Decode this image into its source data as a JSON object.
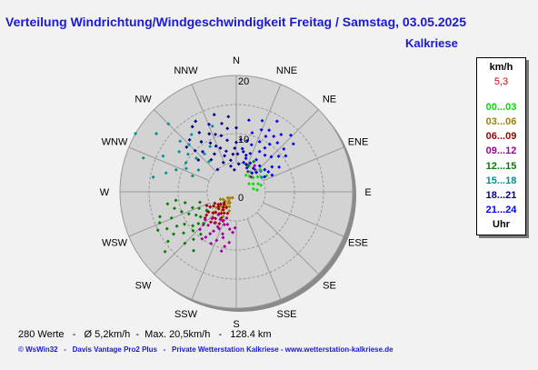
{
  "header": {
    "title": "Verteilung Windrichtung/Windgeschwindigkeit Freitag / Samstag, 03.05.2025",
    "station": "Kalkriese"
  },
  "legend": {
    "unit": "km/h",
    "current_value": "5,3",
    "current_color": "#d40000",
    "time_label": "Uhr",
    "periods": [
      {
        "label": "00...03",
        "color": "#00e000"
      },
      {
        "label": "03...06",
        "color": "#a08000"
      },
      {
        "label": "06...09",
        "color": "#a00000"
      },
      {
        "label": "09...12",
        "color": "#a000a0"
      },
      {
        "label": "12...15",
        "color": "#008000"
      },
      {
        "label": "15...18",
        "color": "#009090"
      },
      {
        "label": "18...21",
        "color": "#000090"
      },
      {
        "label": "21...24",
        "color": "#0000ff"
      }
    ]
  },
  "footer": {
    "stats": "280 Werte   -   Ø 5,2km/h  -  Max. 20,5km/h   -   128.4 km",
    "credits": "© WsWin32   -   Davis Vantage Pro2 Plus   -   Private Wetterstation Kalkriese - www.wetterstation-kalkriese.de"
  },
  "chart_data": {
    "type": "scatter",
    "projection": "polar",
    "angle_unit": "degrees (0 = N, clockwise)",
    "radius_unit": "km/h",
    "rlim": [
      0,
      20
    ],
    "ring_labels": [
      "0",
      "10",
      "20"
    ],
    "directions": [
      "N",
      "NNE",
      "NE",
      "ENE",
      "E",
      "ESE",
      "SE",
      "SSE",
      "S",
      "SSW",
      "SW",
      "WSW",
      "W",
      "WNW",
      "NW",
      "NNW"
    ],
    "grid": true,
    "series": [
      {
        "name": "00...03",
        "color": "#00e000",
        "points": [
          [
            40,
            3.5
          ],
          [
            55,
            4.5
          ],
          [
            70,
            4.0
          ],
          [
            35,
            4.2
          ],
          [
            80,
            3.0
          ],
          [
            60,
            5.0
          ],
          [
            50,
            3.8
          ],
          [
            65,
            3.2
          ],
          [
            45,
            4.8
          ],
          [
            75,
            4.4
          ],
          [
            30,
            3.3
          ],
          [
            58,
            2.6
          ],
          [
            85,
            3.6
          ],
          [
            48,
            5.6
          ],
          [
            62,
            5.9
          ],
          [
            25,
            4.7
          ]
        ]
      },
      {
        "name": "03...06",
        "color": "#a08000",
        "points": [
          [
            220,
            2.0
          ],
          [
            225,
            1.5
          ],
          [
            230,
            2.5
          ],
          [
            215,
            3.0
          ],
          [
            210,
            2.2
          ],
          [
            235,
            1.8
          ],
          [
            205,
            2.8
          ],
          [
            228,
            3.6
          ],
          [
            218,
            4.0
          ],
          [
            240,
            2.6
          ],
          [
            212,
            1.2
          ],
          [
            222,
            3.3
          ],
          [
            200,
            3.5
          ],
          [
            232,
            4.4
          ],
          [
            245,
            3.0
          ],
          [
            208,
            4.8
          ],
          [
            226,
            5.0
          ],
          [
            216,
            2.4
          ]
        ]
      },
      {
        "name": "06...09",
        "color": "#a00000",
        "points": [
          [
            220,
            3.5
          ],
          [
            230,
            4.0
          ],
          [
            225,
            5.0
          ],
          [
            215,
            4.5
          ],
          [
            235,
            3.8
          ],
          [
            210,
            4.2
          ],
          [
            240,
            5.2
          ],
          [
            205,
            5.5
          ],
          [
            222,
            6.0
          ],
          [
            232,
            6.5
          ],
          [
            212,
            3.2
          ],
          [
            228,
            2.8
          ],
          [
            218,
            5.8
          ],
          [
            238,
            4.6
          ],
          [
            226,
            4.2
          ],
          [
            245,
            5.6
          ],
          [
            202,
            4.0
          ],
          [
            234,
            5.9
          ],
          [
            214,
            6.4
          ],
          [
            224,
            3.0
          ],
          [
            230,
            7.0
          ],
          [
            208,
            6.2
          ],
          [
            220,
            6.8
          ],
          [
            236,
            6.0
          ],
          [
            216,
            3.8
          ],
          [
            242,
            4.2
          ],
          [
            228,
            5.4
          ],
          [
            210,
            5.2
          ],
          [
            218,
            4.8
          ],
          [
            232,
            3.4
          ]
        ]
      },
      {
        "name": "09...12",
        "color": "#a000a0",
        "points": [
          [
            210,
            5.5
          ],
          [
            215,
            6.5
          ],
          [
            220,
            7.5
          ],
          [
            200,
            6.0
          ],
          [
            205,
            7.0
          ],
          [
            195,
            5.8
          ],
          [
            225,
            8.0
          ],
          [
            190,
            6.5
          ],
          [
            212,
            8.5
          ],
          [
            202,
            9.0
          ],
          [
            198,
            7.6
          ],
          [
            218,
            5.0
          ],
          [
            185,
            7.0
          ],
          [
            208,
            6.8
          ],
          [
            222,
            6.2
          ],
          [
            196,
            8.2
          ],
          [
            214,
            9.4
          ],
          [
            204,
            5.4
          ],
          [
            188,
            8.8
          ],
          [
            228,
            7.2
          ],
          [
            192,
            9.6
          ],
          [
            210,
            7.8
          ],
          [
            200,
            4.8
          ],
          [
            216,
            10.0
          ],
          [
            182,
            6.2
          ],
          [
            206,
            9.9
          ],
          [
            194,
            10.5
          ],
          [
            224,
            9.0
          ],
          [
            30,
            4.0
          ],
          [
            40,
            5.0
          ],
          [
            45,
            3.6
          ],
          [
            35,
            5.5
          ]
        ]
      },
      {
        "name": "12...15",
        "color": "#008000",
        "points": [
          [
            240,
            8.0
          ],
          [
            245,
            9.0
          ],
          [
            235,
            7.5
          ],
          [
            250,
            10.0
          ],
          [
            230,
            8.5
          ],
          [
            255,
            11.0
          ],
          [
            238,
            10.5
          ],
          [
            248,
            12.0
          ],
          [
            232,
            11.5
          ],
          [
            225,
            12.5
          ],
          [
            242,
            13.5
          ],
          [
            258,
            9.0
          ],
          [
            236,
            13.0
          ],
          [
            252,
            13.8
          ],
          [
            228,
            10.0
          ],
          [
            246,
            7.0
          ],
          [
            232,
            9.5
          ],
          [
            260,
            12.0
          ],
          [
            222,
            11.0
          ],
          [
            240,
            11.8
          ],
          [
            250,
            8.0
          ],
          [
            220,
            9.5
          ],
          [
            244,
            15.0
          ],
          [
            262,
            10.5
          ],
          [
            234,
            14.5
          ],
          [
            216,
            12.5
          ],
          [
            248,
            14.2
          ],
          [
            254,
            6.5
          ],
          [
            238,
            6.0
          ],
          [
            226,
            7.8
          ],
          [
            230,
            16.0
          ],
          [
            30,
            6.0
          ],
          [
            25,
            5.0
          ]
        ]
      },
      {
        "name": "15...18",
        "color": "#009090",
        "points": [
          [
            300,
            10.0
          ],
          [
            310,
            9.0
          ],
          [
            290,
            11.0
          ],
          [
            320,
            8.5
          ],
          [
            305,
            12.0
          ],
          [
            295,
            9.5
          ],
          [
            315,
            11.5
          ],
          [
            325,
            10.5
          ],
          [
            285,
            12.5
          ],
          [
            330,
            9.0
          ],
          [
            300,
            7.5
          ],
          [
            312,
            13.0
          ],
          [
            296,
            14.0
          ],
          [
            318,
            7.0
          ],
          [
            335,
            11.0
          ],
          [
            308,
            10.5
          ],
          [
            322,
            12.5
          ],
          [
            290,
            8.0
          ],
          [
            300,
            20.0
          ],
          [
            306,
            17.0
          ],
          [
            315,
            16.5
          ],
          [
            280,
            14.5
          ],
          [
            290,
            17.0
          ],
          [
            340,
            12.0
          ],
          [
            50,
            5.5
          ],
          [
            60,
            5.0
          ]
        ]
      },
      {
        "name": "18...21",
        "color": "#000090",
        "points": [
          [
            340,
            8.0
          ],
          [
            350,
            9.0
          ],
          [
            330,
            7.5
          ],
          [
            345,
            10.0
          ],
          [
            320,
            9.0
          ],
          [
            355,
            6.5
          ],
          [
            335,
            11.0
          ],
          [
            325,
            10.5
          ],
          [
            0,
            8.5
          ],
          [
            348,
            12.0
          ],
          [
            338,
            12.5
          ],
          [
            328,
            12.0
          ],
          [
            310,
            8.5
          ],
          [
            315,
            10.0
          ],
          [
            342,
            6.5
          ],
          [
            352,
            11.0
          ],
          [
            5,
            9.0
          ],
          [
            318,
            12.0
          ],
          [
            332,
            9.5
          ],
          [
            346,
            7.2
          ],
          [
            322,
            7.0
          ],
          [
            336,
            8.6
          ],
          [
            2,
            6.5
          ],
          [
            354,
            13.0
          ],
          [
            326,
            13.5
          ],
          [
            312,
            11.5
          ],
          [
            344,
            13.8
          ],
          [
            340,
            10.5
          ],
          [
            10,
            7.0
          ],
          [
            358,
            7.5
          ],
          [
            330,
            14.0
          ],
          [
            0,
            11.0
          ],
          [
            350,
            5.5
          ],
          [
            15,
            6.5
          ],
          [
            320,
            5.0
          ],
          [
            336,
            5.5
          ],
          [
            348,
            4.5
          ],
          [
            5,
            4.8
          ],
          [
            20,
            5.0
          ],
          [
            355,
            3.8
          ]
        ]
      },
      {
        "name": "21...24",
        "color": "#0000ff",
        "points": [
          [
            20,
            7.0
          ],
          [
            30,
            8.0
          ],
          [
            25,
            9.5
          ],
          [
            35,
            10.0
          ],
          [
            15,
            10.5
          ],
          [
            40,
            11.0
          ],
          [
            28,
            12.0
          ],
          [
            45,
            8.5
          ],
          [
            10,
            12.5
          ],
          [
            50,
            9.5
          ],
          [
            38,
            12.5
          ],
          [
            18,
            8.5
          ],
          [
            32,
            6.5
          ],
          [
            42,
            6.0
          ],
          [
            55,
            7.5
          ],
          [
            22,
            11.5
          ],
          [
            48,
            11.0
          ],
          [
            12,
            9.0
          ],
          [
            26,
            5.5
          ],
          [
            36,
            5.0
          ],
          [
            60,
            8.5
          ],
          [
            8,
            7.5
          ],
          [
            44,
            13.5
          ],
          [
            30,
            14.0
          ],
          [
            52,
            6.2
          ],
          [
            16,
            6.0
          ],
          [
            58,
            6.5
          ],
          [
            34,
            11.5
          ],
          [
            24,
            4.5
          ],
          [
            40,
            4.2
          ],
          [
            65,
            6.8
          ],
          [
            46,
            4.8
          ],
          [
            54,
            10.5
          ],
          [
            20,
            13.0
          ],
          [
            38,
            8.0
          ],
          [
            28,
            10.8
          ],
          [
            14,
            5.2
          ],
          [
            62,
            5.5
          ],
          [
            50,
            12.8
          ],
          [
            33,
            9.0
          ]
        ]
      }
    ]
  }
}
